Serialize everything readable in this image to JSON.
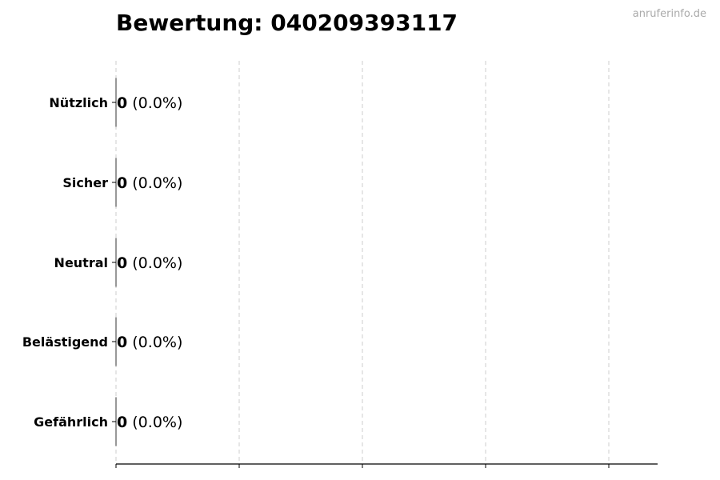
{
  "chart_data": {
    "type": "bar",
    "orientation": "horizontal",
    "title": "Bewertung: 040209393117",
    "categories": [
      "Nützlich",
      "Sicher",
      "Neutral",
      "Belästigend",
      "Gefährlich"
    ],
    "values": [
      0,
      0,
      0,
      0,
      0
    ],
    "data_labels": [
      {
        "count": "0",
        "percent": "(0.0%)"
      },
      {
        "count": "0",
        "percent": "(0.0%)"
      },
      {
        "count": "0",
        "percent": "(0.0%)"
      },
      {
        "count": "0",
        "percent": "(0.0%)"
      },
      {
        "count": "0",
        "percent": "(0.0%)"
      }
    ],
    "xlabel": "",
    "ylabel": "",
    "x_tick_count": 5,
    "x_tick_labels_shown": false,
    "grid": "x, dashed",
    "grid_color": "#cccccc",
    "bar_edge_color": "#333333"
  },
  "watermark": "anruferinfo.de"
}
